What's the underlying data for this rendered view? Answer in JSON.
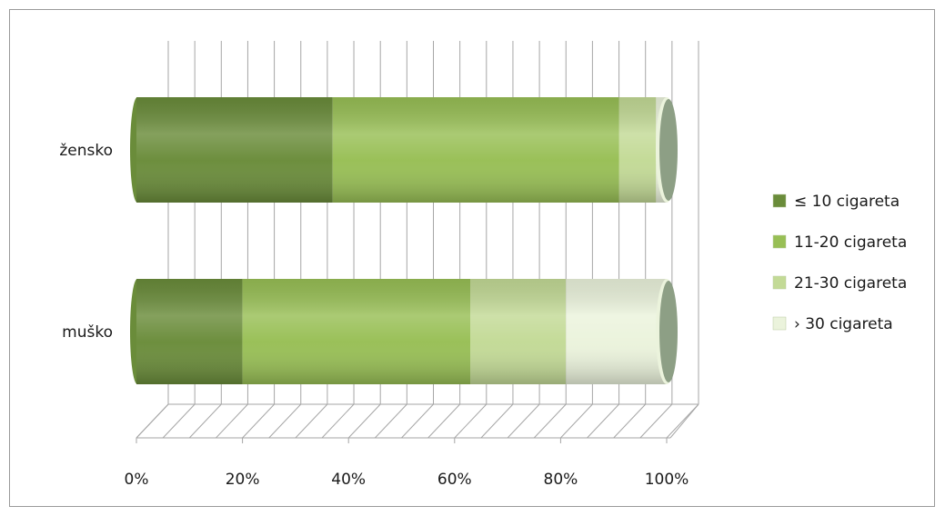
{
  "chart_data": {
    "type": "bar",
    "orientation": "horizontal",
    "stacked": "percent",
    "categories": [
      "muško",
      "žensko"
    ],
    "series": [
      {
        "name": "≤ 10 cigareta",
        "values": [
          20,
          37
        ],
        "color": "#6a8c3a"
      },
      {
        "name": "11-20 cigareta",
        "values": [
          43,
          54
        ],
        "color": "#98bf55"
      },
      {
        "name": "21-30 cigareta",
        "values": [
          18,
          7
        ],
        "color": "#c3da96"
      },
      {
        "name": "› 30 cigareta",
        "values": [
          19,
          2
        ],
        "color": "#ebf3dc"
      }
    ],
    "x_ticks": [
      "0%",
      "20%",
      "40%",
      "60%",
      "80%",
      "100%"
    ],
    "xlim": [
      0,
      100
    ],
    "grid": true,
    "legend": "right",
    "title": "",
    "xlabel": "",
    "ylabel": ""
  }
}
